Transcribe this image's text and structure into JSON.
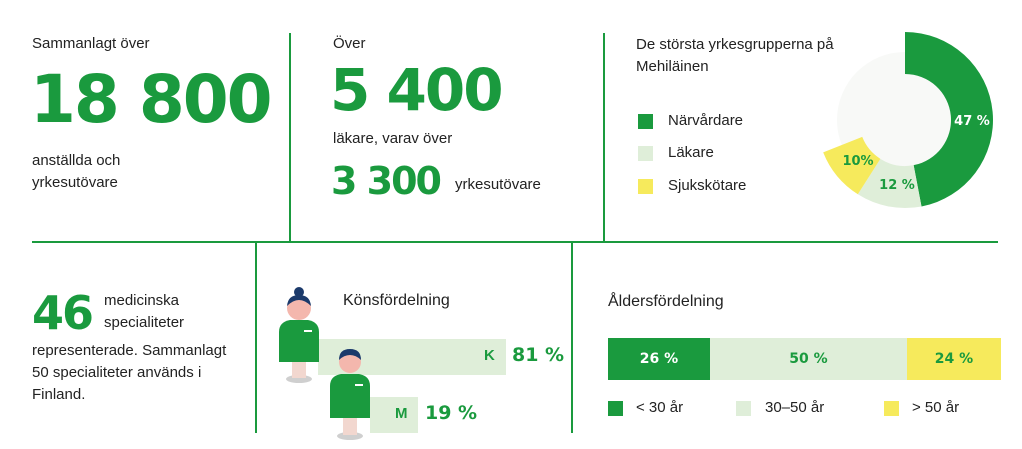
{
  "colors": {
    "green": "#1a9a3e",
    "light": "#dfeed9",
    "yellow": "#f6ea5c"
  },
  "employees": {
    "prefix": "Sammanlagt över",
    "value": "18 800",
    "caption": "anställda och yrkesutövare"
  },
  "doctors": {
    "prefix": "Över",
    "value": "5 400",
    "caption": "läkare, varav över",
    "sub_value": "3 300",
    "sub_caption": "yrkesutövare"
  },
  "specialties": {
    "value": "46",
    "caption_top": "medicinska specialiteter",
    "caption_rest": "representerade. Sammanlagt 50 specialiteter används i Finland."
  },
  "gender": {
    "title": "Könsfördelning",
    "female": {
      "letter": "K",
      "label": "81 %",
      "value": 81
    },
    "male": {
      "letter": "M",
      "label": "19 %",
      "value": 19
    }
  },
  "chart_data": [
    {
      "type": "pie",
      "title": "De största yrkesgrupperna på Mehiläinen",
      "legend": [
        "Närvårdare",
        "Läkare",
        "Sjukskötare"
      ],
      "labels": [
        "47 %",
        "12 %",
        "10%"
      ],
      "values": [
        47,
        12,
        10
      ],
      "colors": [
        "#1a9a3e",
        "#dfeed9",
        "#f6ea5c"
      ]
    },
    {
      "type": "bar",
      "title": "Åldersfördelning",
      "categories": [
        "< 30 år",
        "30–50 år",
        "> 50 år"
      ],
      "labels": [
        "26 %",
        "50 %",
        "24 %"
      ],
      "values": [
        26,
        50,
        24
      ],
      "colors": [
        "#1a9a3e",
        "#dfeed9",
        "#f6ea5c"
      ]
    }
  ]
}
